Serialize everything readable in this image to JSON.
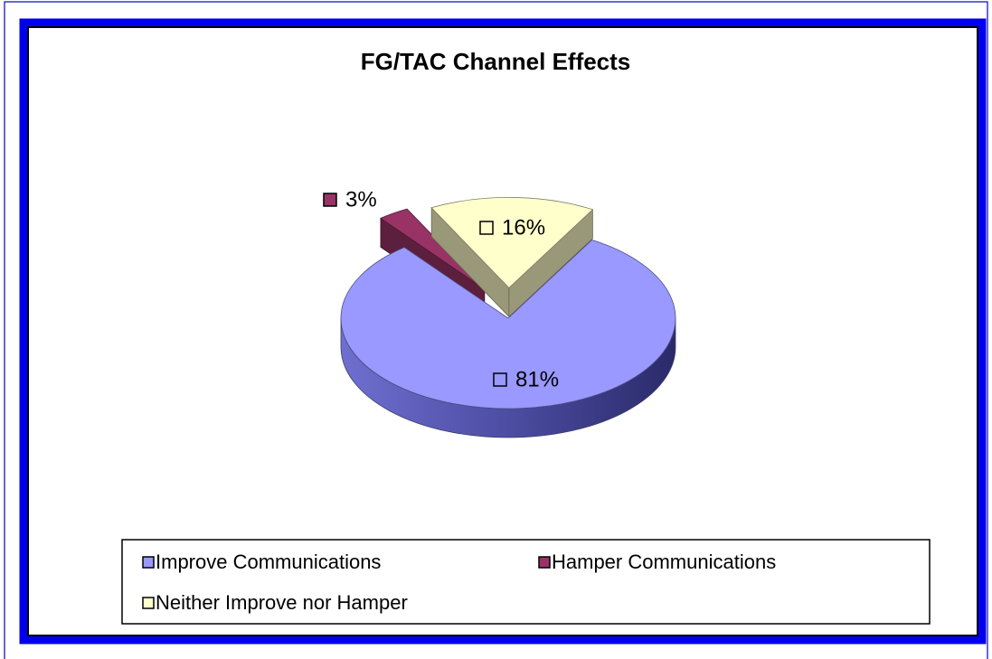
{
  "chart_data": {
    "type": "pie",
    "title": "FG/TAC Channel Effects",
    "categories": [
      "Improve Communications",
      "Hamper Communications",
      "Neither Improve nor Hamper"
    ],
    "values": [
      81,
      3,
      16
    ],
    "value_labels": [
      "81%",
      "3%",
      "16%"
    ],
    "colors": [
      "#9999ff",
      "#993366",
      "#ffffcc"
    ]
  }
}
